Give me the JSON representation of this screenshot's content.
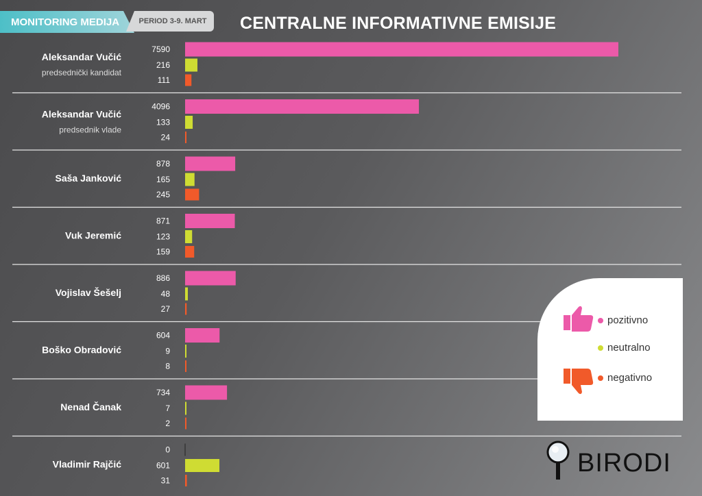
{
  "header": {
    "tab_label": "MONITORING MEDIJA",
    "period": "PERIOD 3-9. MART",
    "title": "CENTRALNE INFORMATIVNE EMISIJE"
  },
  "colors": {
    "positive": "#ec5aa9",
    "neutral": "#cfdc33",
    "negative": "#f15a2a"
  },
  "chart_data": {
    "type": "bar",
    "orientation": "horizontal",
    "title": "CENTRALNE INFORMATIVNE EMISIJE",
    "categories": [
      {
        "name": "Aleksandar Vučić",
        "sub": "predsednički kandidat"
      },
      {
        "name": "Aleksandar Vučić",
        "sub": "predsednik vlade"
      },
      {
        "name": "Saša Janković",
        "sub": ""
      },
      {
        "name": "Vuk Jeremić",
        "sub": ""
      },
      {
        "name": "Vojislav Šešelj",
        "sub": ""
      },
      {
        "name": "Boško Obradović",
        "sub": ""
      },
      {
        "name": "Nenad Čanak",
        "sub": ""
      },
      {
        "name": "Vladimir Rajčić",
        "sub": ""
      }
    ],
    "series": [
      {
        "name": "pozitivno",
        "values": [
          7590,
          4096,
          878,
          871,
          886,
          604,
          734,
          0
        ]
      },
      {
        "name": "neutralno",
        "values": [
          216,
          133,
          165,
          123,
          48,
          9,
          7,
          601
        ]
      },
      {
        "name": "negativno",
        "values": [
          111,
          24,
          245,
          159,
          27,
          8,
          2,
          31
        ]
      }
    ],
    "xlim": [
      0,
      7590
    ]
  },
  "legend": {
    "positive": "pozitivno",
    "neutral": "neutralno",
    "negative": "negativno"
  },
  "brand": "BIRODI"
}
